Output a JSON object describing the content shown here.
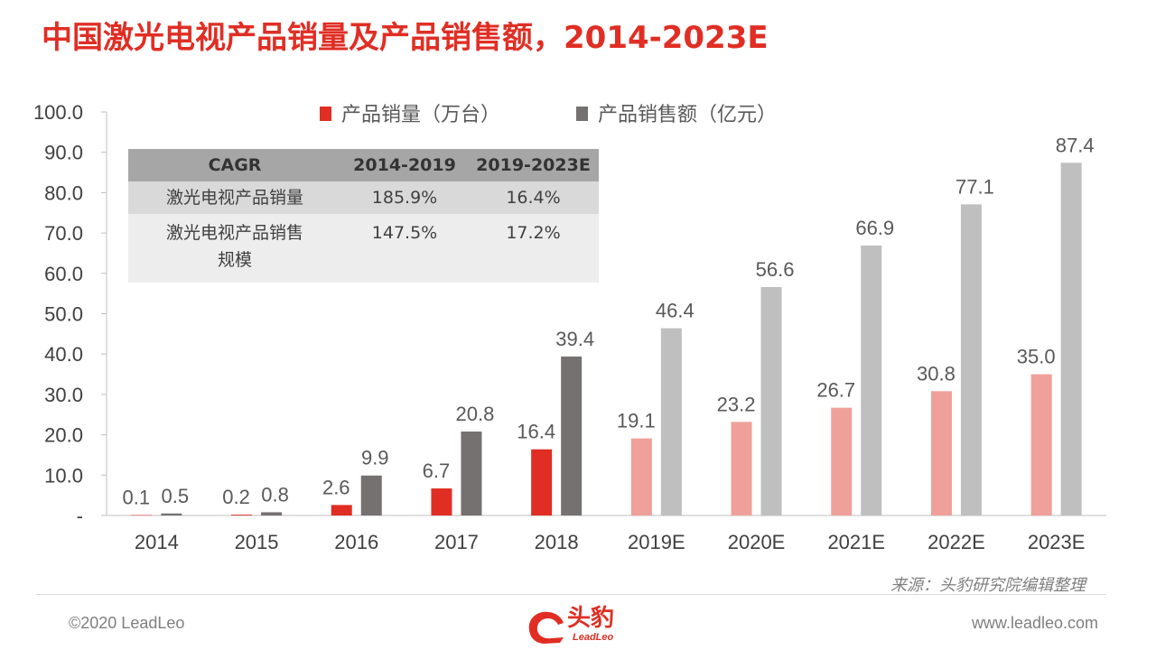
{
  "title": "中国激光电视产品销量及产品销售额，2014-2023E",
  "chart_data": {
    "type": "bar",
    "categories": [
      "2014",
      "2015",
      "2016",
      "2017",
      "2018",
      "2019E",
      "2020E",
      "2021E",
      "2022E",
      "2023E"
    ],
    "series": [
      {
        "name": "产品销量（万台）",
        "values": [
          0.1,
          0.2,
          2.6,
          6.7,
          16.4,
          19.1,
          23.2,
          26.7,
          30.8,
          35.0
        ],
        "colors": [
          "#E02E24",
          "#E02E24",
          "#E02E24",
          "#E02E24",
          "#E02E24",
          "#F0A09A",
          "#F0A09A",
          "#F0A09A",
          "#F0A09A",
          "#F0A09A"
        ]
      },
      {
        "name": "产品销售额（亿元）",
        "values": [
          0.5,
          0.8,
          9.9,
          20.8,
          39.4,
          46.4,
          56.6,
          66.9,
          77.1,
          87.4
        ],
        "colors": [
          "#767171",
          "#767171",
          "#767171",
          "#767171",
          "#767171",
          "#BFBFBF",
          "#BFBFBF",
          "#BFBFBF",
          "#BFBFBF",
          "#BFBFBF"
        ]
      }
    ],
    "data_labels": [
      [
        "0.1",
        "0.2",
        "2.6",
        "6.7",
        "16.4",
        "19.1",
        "23.2",
        "26.7",
        "30.8",
        "35.0"
      ],
      [
        "0.5",
        "0.8",
        "9.9",
        "20.8",
        "39.4",
        "46.4",
        "56.6",
        "66.9",
        "77.1",
        "87.4"
      ]
    ],
    "ylim": [
      0,
      100
    ],
    "yticks": [
      "-",
      "10.0",
      "20.0",
      "30.0",
      "40.0",
      "50.0",
      "60.0",
      "70.0",
      "80.0",
      "90.0",
      "100.0"
    ],
    "legend_position": "top",
    "legend_colors": [
      "#E02E24",
      "#767171"
    ],
    "grid": false
  },
  "cagr_table": {
    "headers": [
      "CAGR",
      "2014-2019",
      "2019-2023E"
    ],
    "rows": [
      [
        "激光电视产品销量",
        "185.9%",
        "16.4%"
      ],
      [
        "激光电视产品销售\n规模",
        "147.5%",
        "17.2%"
      ]
    ]
  },
  "source": "来源：头豹研究院编辑整理",
  "copyright": "©2020 LeadLeo",
  "website": "www.leadleo.com",
  "logo": {
    "name": "头豹",
    "sub": "LeadLeo"
  }
}
